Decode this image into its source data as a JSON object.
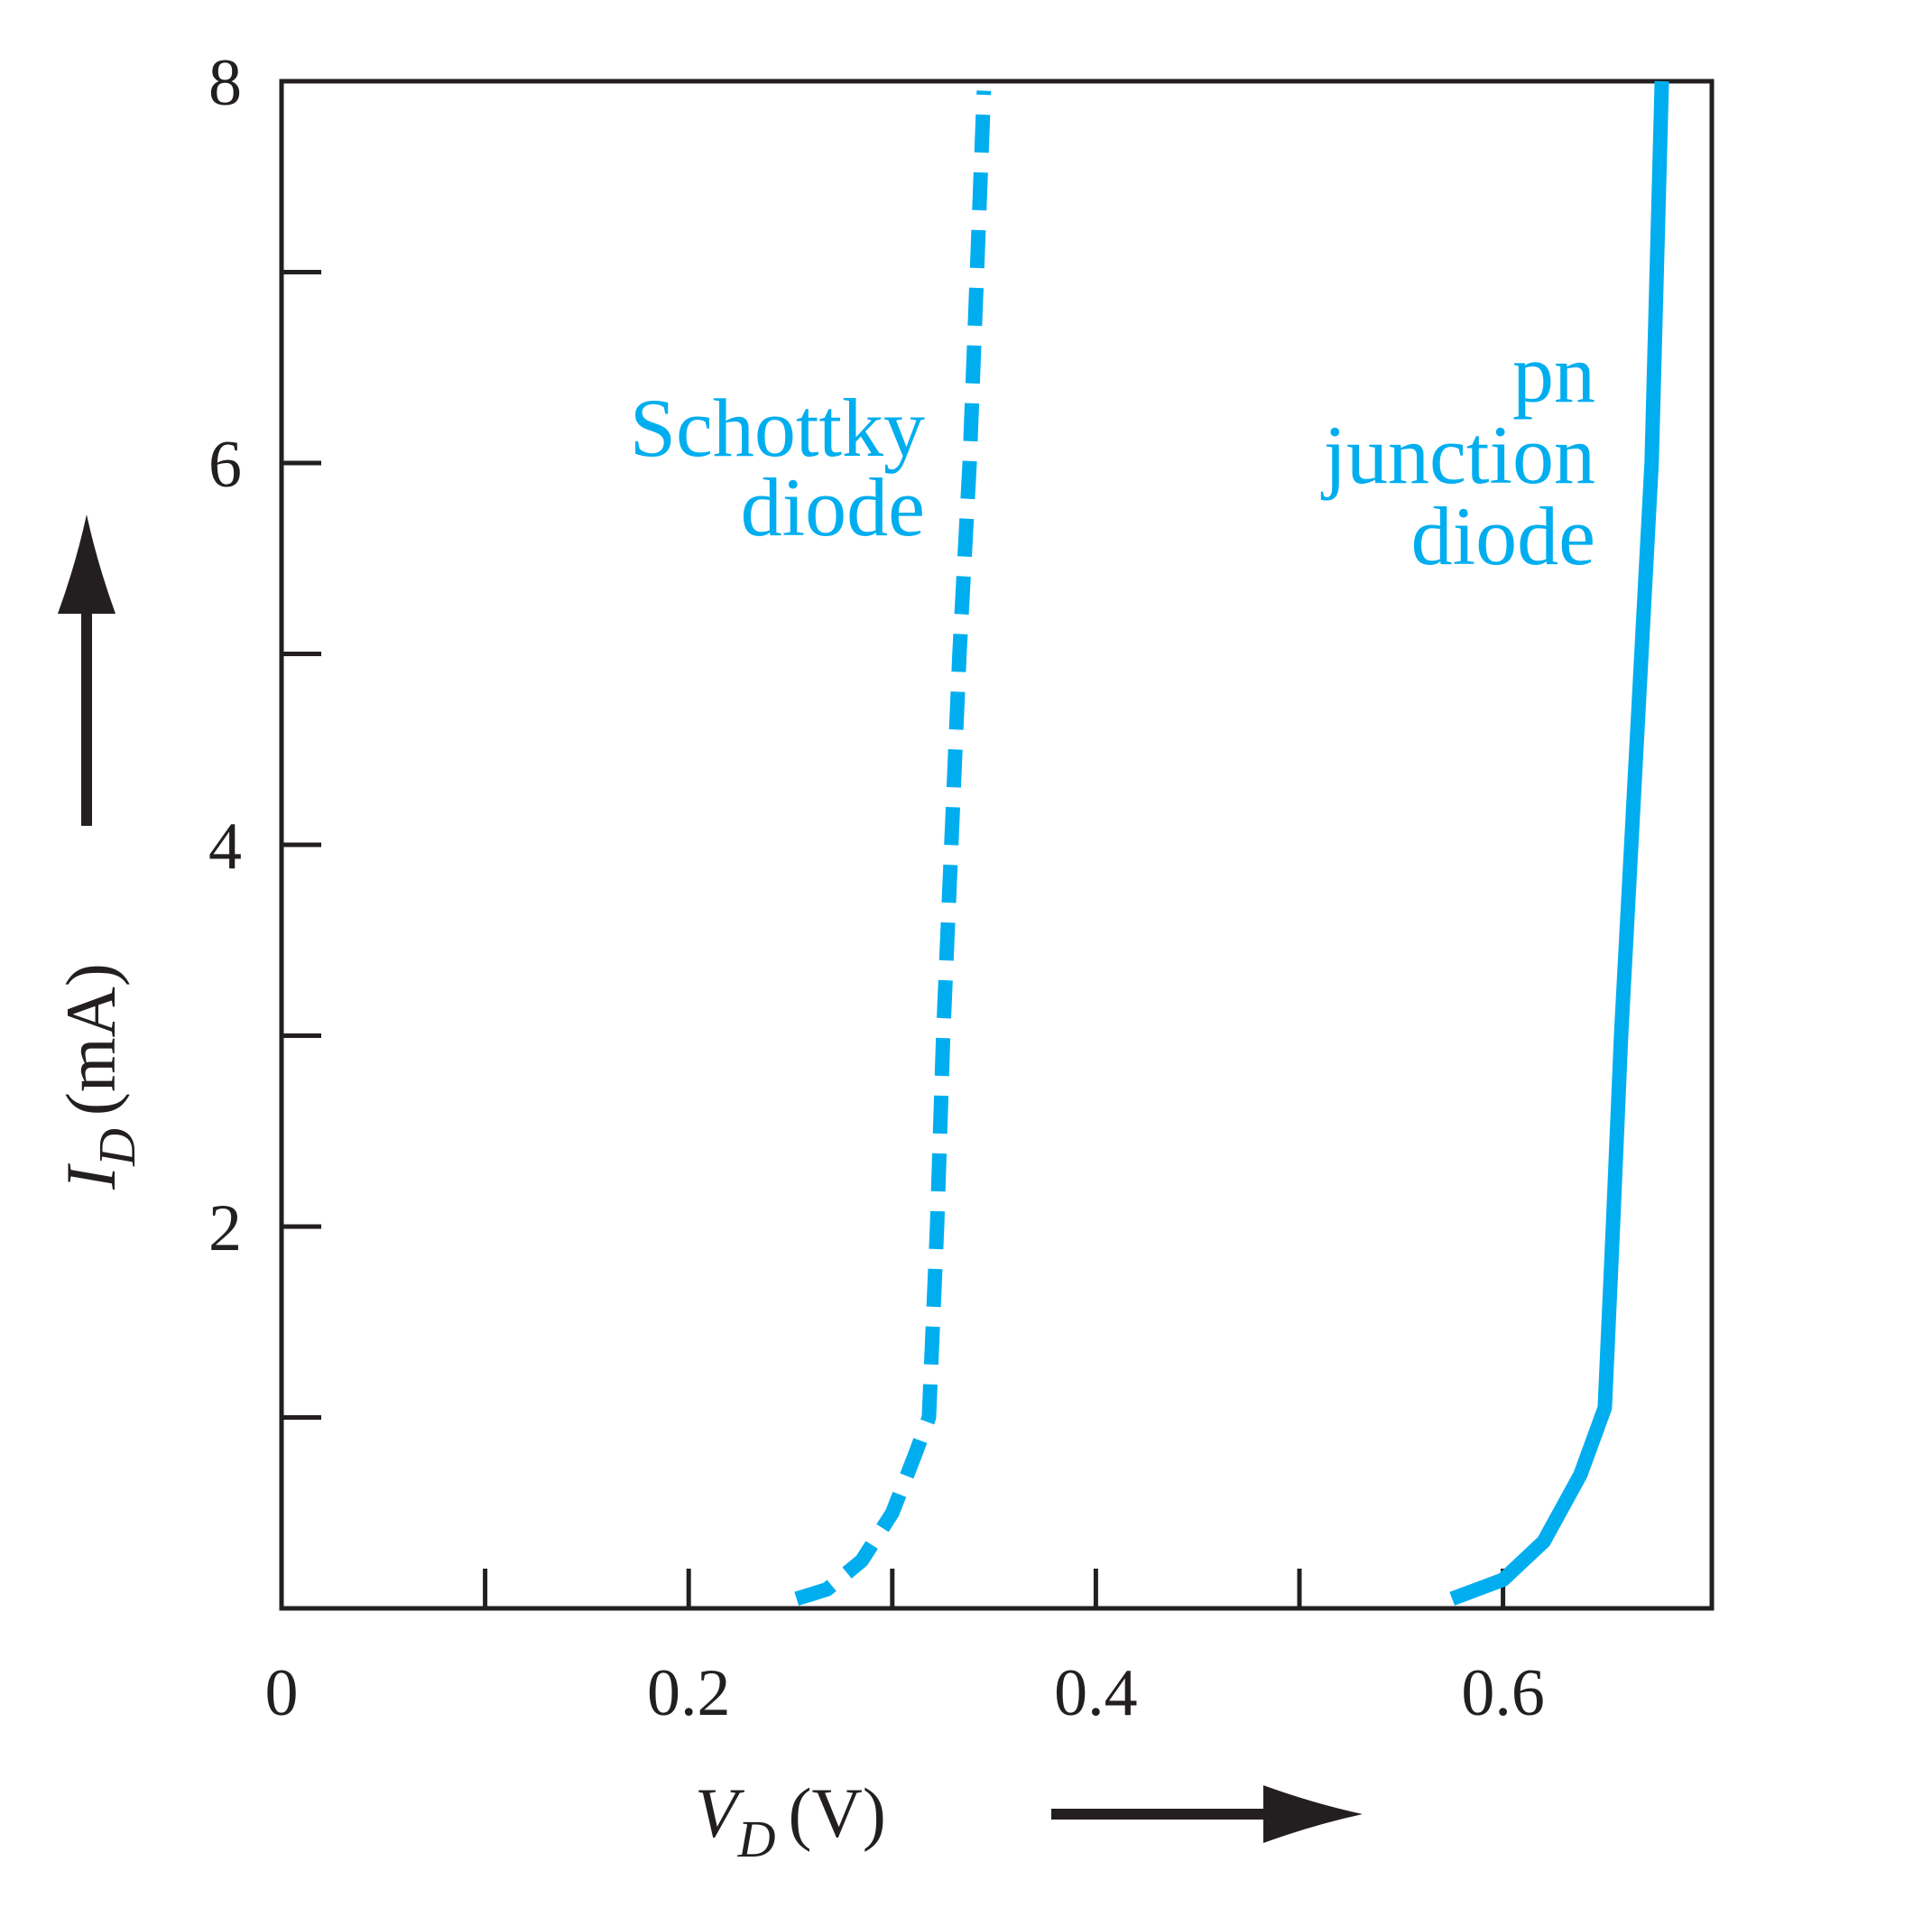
{
  "chart_data": {
    "type": "line",
    "title": "",
    "xlabel": {
      "symbol": "V",
      "subscript": "D",
      "unit": "(V)"
    },
    "ylabel": {
      "symbol": "I",
      "subscript": "D",
      "unit": "(mA)"
    },
    "xlim": [
      0,
      0.7
    ],
    "ylim": [
      0,
      8
    ],
    "x_ticks_major": [
      0,
      0.2,
      0.4,
      0.6
    ],
    "x_tick_labels": [
      "0",
      "0.2",
      "0.4",
      "0.6"
    ],
    "x_ticks_minor": [
      0.1,
      0.3,
      0.5
    ],
    "y_ticks_major": [
      2,
      4,
      6,
      8
    ],
    "y_tick_labels": [
      "2",
      "4",
      "6",
      "8"
    ],
    "y_ticks_minor": [
      1,
      3,
      5,
      7
    ],
    "grid": false,
    "legend": "none",
    "series": [
      {
        "name": "Schottky diode",
        "label_lines": [
          "Schottky",
          "diode"
        ],
        "style": "dashed",
        "color": "#00aeef",
        "x": [
          0.253,
          0.268,
          0.285,
          0.3,
          0.311,
          0.318,
          0.322,
          0.325,
          0.329,
          0.333,
          0.338,
          0.345
        ],
        "y": [
          0.05,
          0.1,
          0.25,
          0.5,
          0.8,
          1.0,
          2.0,
          3.0,
          4.0,
          5.0,
          6.0,
          7.95
        ]
      },
      {
        "name": "pn junction diode",
        "label_lines": [
          "pn",
          "junction",
          "diode"
        ],
        "style": "solid",
        "color": "#00aeef",
        "x": [
          0.575,
          0.6,
          0.62,
          0.638,
          0.65,
          0.654,
          0.658,
          0.663,
          0.668,
          0.673,
          0.678
        ],
        "y": [
          0.05,
          0.15,
          0.35,
          0.7,
          1.05,
          2.0,
          3.0,
          4.0,
          5.0,
          6.0,
          8.0
        ]
      }
    ]
  }
}
